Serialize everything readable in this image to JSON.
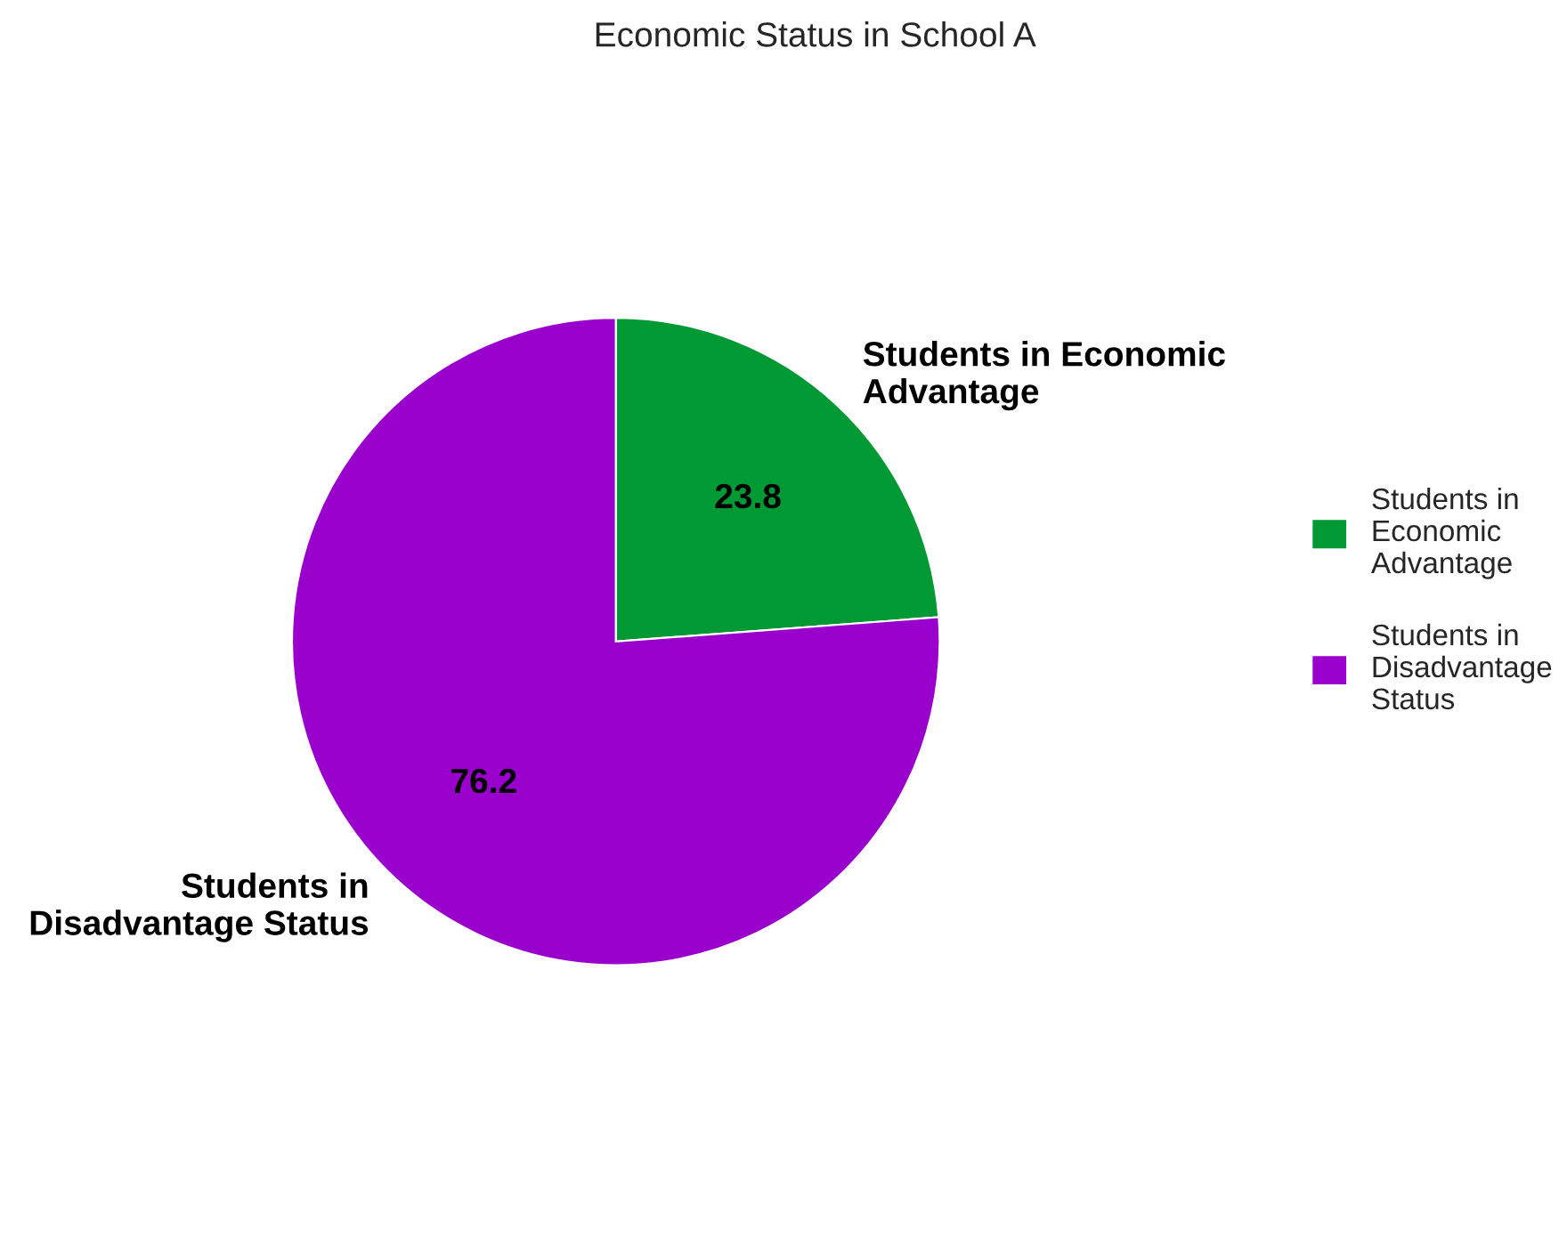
{
  "chart_data": {
    "type": "pie",
    "title": "Economic Status in School A",
    "categories": [
      "Students in Economic Advantage",
      "Students in Disadvantage Status"
    ],
    "values": [
      23.8,
      76.2
    ],
    "colors": [
      "#009933",
      "#9900cc"
    ],
    "data_labels": true,
    "legend": "right"
  }
}
